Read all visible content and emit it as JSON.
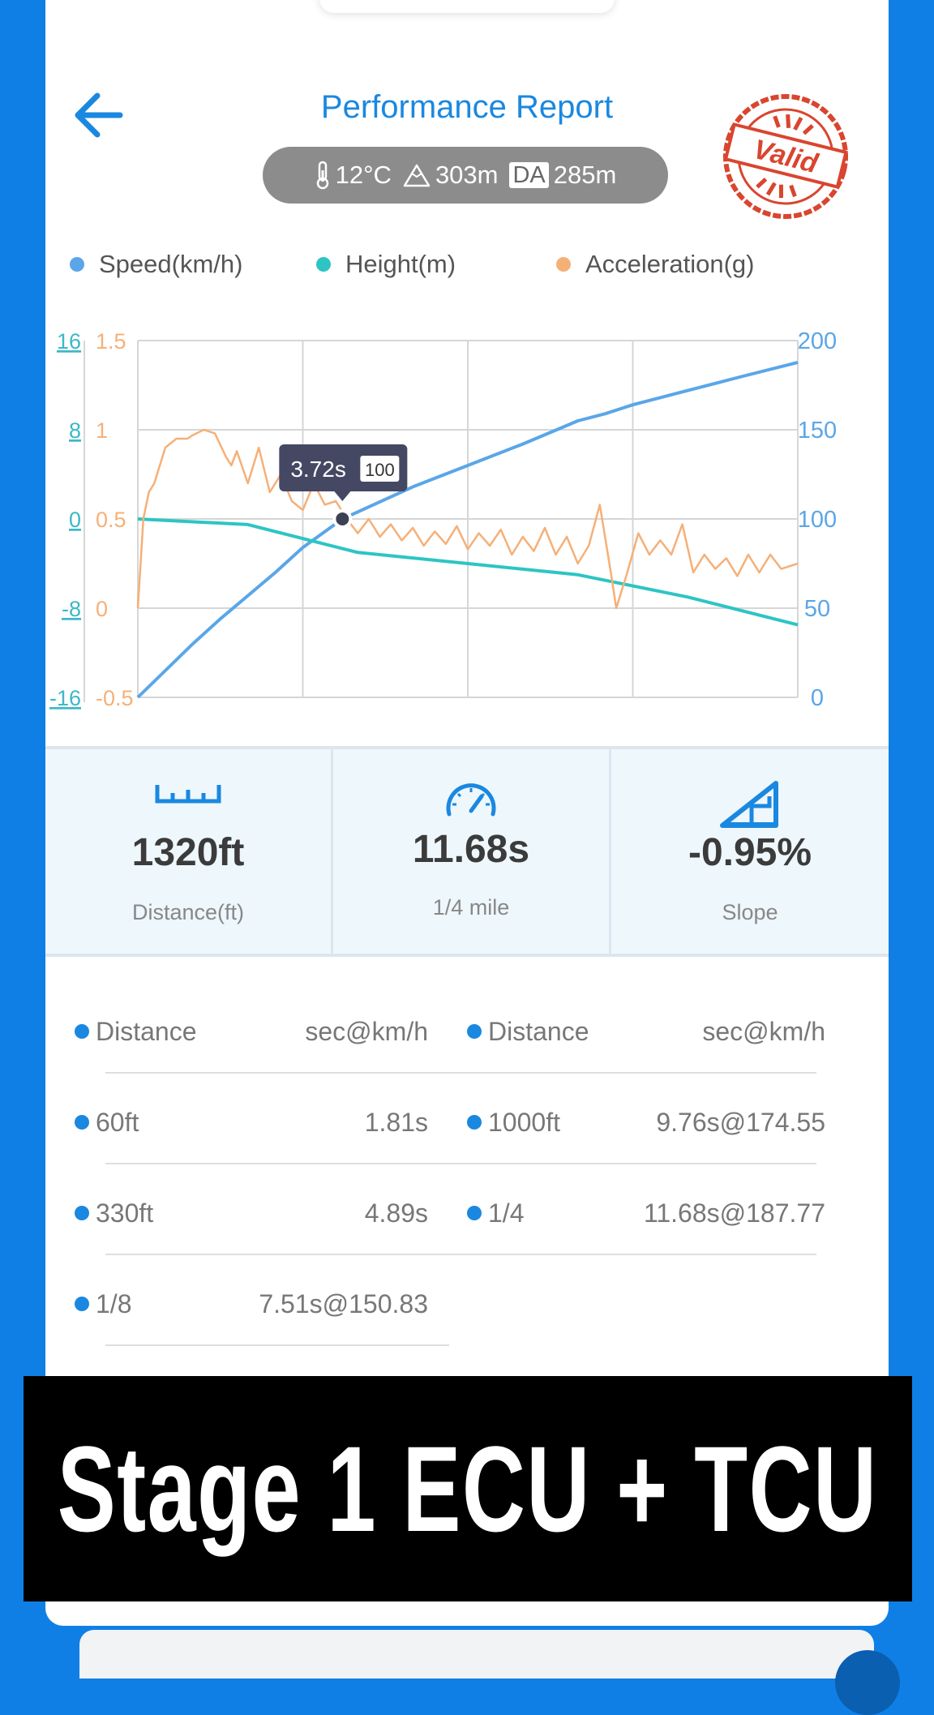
{
  "header": {
    "title": "Performance Report",
    "temperature": "12°C",
    "altitude": "303m",
    "da_label": "DA",
    "density_altitude": "285m",
    "stamp_text": "Valid"
  },
  "chart_data": {
    "type": "line",
    "legend": [
      "Speed(km/h)",
      "Height(m)",
      "Acceleration(g)"
    ],
    "axes": {
      "height_ticks": [
        "16",
        "8",
        "0",
        "-8",
        "-16"
      ],
      "accel_ticks": [
        "1.5",
        "1",
        "0.5",
        "0",
        "-0.5"
      ],
      "speed_ticks": [
        "200",
        "150",
        "100",
        "50",
        "0"
      ],
      "height_range": [
        -16,
        16
      ],
      "accel_range": [
        -0.5,
        1.5
      ],
      "speed_range": [
        0,
        200
      ]
    },
    "x_range": [
      0,
      12
    ],
    "grid": true,
    "legend_position": "top",
    "tooltip": {
      "time": "3.72s",
      "value": "100"
    },
    "series": [
      {
        "name": "Speed(km/h)",
        "color": "#5aa6e8",
        "x": [
          0,
          0.5,
          1,
          1.5,
          2,
          2.5,
          3,
          3.72,
          4.5,
          5,
          6,
          7,
          8,
          8.5,
          9,
          10,
          11,
          12
        ],
        "y": [
          0,
          15,
          30,
          44,
          57,
          70,
          84,
          100,
          111,
          118,
          130,
          142,
          155,
          159,
          164,
          172,
          180,
          187.77
        ]
      },
      {
        "name": "Height(m)",
        "color": "#2ec4c4",
        "x": [
          0,
          2,
          4,
          6,
          8,
          10,
          12
        ],
        "y": [
          0,
          -0.5,
          -3,
          -4,
          -5,
          -7,
          -9.5
        ]
      },
      {
        "name": "Acceleration(g)",
        "color": "#f5b078",
        "x": [
          0,
          0.1,
          0.2,
          0.3,
          0.5,
          0.7,
          0.9,
          1.0,
          1.2,
          1.4,
          1.6,
          1.7,
          1.8,
          2.0,
          2.2,
          2.4,
          2.6,
          2.8,
          3.0,
          3.2,
          3.4,
          3.6,
          3.8,
          4.0,
          4.2,
          4.4,
          4.6,
          4.8,
          5.0,
          5.2,
          5.4,
          5.6,
          5.8,
          6.0,
          6.2,
          6.4,
          6.6,
          6.8,
          7.0,
          7.2,
          7.4,
          7.6,
          7.8,
          8.0,
          8.2,
          8.4,
          8.6,
          8.7,
          8.9,
          9.1,
          9.3,
          9.5,
          9.7,
          9.9,
          10.1,
          10.3,
          10.5,
          10.7,
          10.9,
          11.1,
          11.3,
          11.5,
          11.7,
          12.0
        ],
        "y": [
          0.0,
          0.5,
          0.65,
          0.7,
          0.9,
          0.95,
          0.95,
          0.97,
          1.0,
          0.98,
          0.85,
          0.8,
          0.88,
          0.7,
          0.9,
          0.65,
          0.75,
          0.6,
          0.55,
          0.7,
          0.58,
          0.6,
          0.5,
          0.42,
          0.5,
          0.4,
          0.47,
          0.38,
          0.45,
          0.35,
          0.43,
          0.36,
          0.46,
          0.33,
          0.42,
          0.35,
          0.44,
          0.3,
          0.4,
          0.32,
          0.45,
          0.3,
          0.4,
          0.25,
          0.35,
          0.58,
          0.2,
          0.0,
          0.2,
          0.42,
          0.3,
          0.38,
          0.3,
          0.47,
          0.2,
          0.3,
          0.22,
          0.28,
          0.18,
          0.3,
          0.2,
          0.3,
          0.22,
          0.25
        ]
      }
    ]
  },
  "stats": [
    {
      "value": "1320ft",
      "label": "Distance(ft)"
    },
    {
      "value": "11.68s",
      "label": "1/4 mile"
    },
    {
      "value": "-0.95%",
      "label": "Slope"
    }
  ],
  "table": {
    "header": [
      "Distance",
      "sec@km/h",
      "Distance",
      "sec@km/h"
    ],
    "left": [
      {
        "d": "60ft",
        "v": "1.81s"
      },
      {
        "d": "330ft",
        "v": "4.89s"
      },
      {
        "d": "1/8",
        "v": "7.51s@150.83"
      }
    ],
    "right": [
      {
        "d": "1000ft",
        "v": "9.76s@174.55"
      },
      {
        "d": "1/4",
        "v": "11.68s@187.77"
      }
    ]
  },
  "banner": {
    "text": "Stage 1 ECU + TCU"
  },
  "colors": {
    "accent": "#1a88e0",
    "background": "#0f7fe6",
    "stamp": "#d9452f"
  }
}
